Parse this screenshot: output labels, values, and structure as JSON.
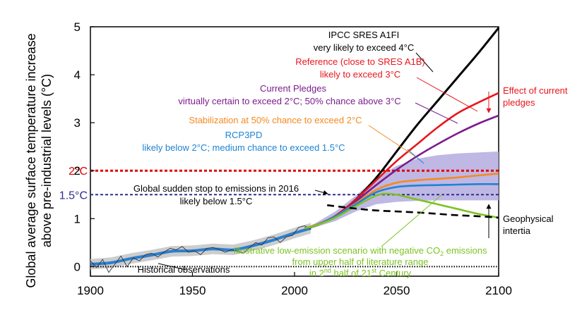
{
  "chart_data": {
    "type": "line",
    "title": "",
    "xlabel": "",
    "ylabel_lines": [
      "Global average surface temperature increase",
      "above pre-industrial levels (°C)"
    ],
    "xlim": [
      1900,
      2100
    ],
    "ylim": [
      -0.2,
      5
    ],
    "xticks": [
      1900,
      1950,
      2000,
      2050,
      2100
    ],
    "yticks": [
      0,
      1,
      2,
      3,
      4,
      5
    ],
    "grid": false,
    "colors": {
      "observations": "#333333",
      "history_band": "#c8c8c8",
      "history_mean": "#2a7fd0",
      "rcp3pd": "#1f83d1",
      "rcp3pd_band": "#b4acdf",
      "sres_a1fi": "#000000",
      "reference": "#e8161c",
      "pledges": "#7a1d8c",
      "stabilization": "#f5891f",
      "low_emission": "#7dc322",
      "sudden_stop": "#000000",
      "threshold_2c": "#e00000",
      "threshold_15c": "#2f2e8e"
    },
    "thresholds": [
      {
        "label": "2°C",
        "value": 2.0
      },
      {
        "label": "1.5°C",
        "value": 1.5
      }
    ],
    "observations": {
      "x": [
        1900,
        1903,
        1906,
        1909,
        1912,
        1915,
        1918,
        1921,
        1924,
        1927,
        1930,
        1933,
        1936,
        1939,
        1942,
        1945,
        1948,
        1951,
        1954,
        1957,
        1960,
        1963,
        1966,
        1969,
        1972,
        1975,
        1978,
        1981,
        1984,
        1987,
        1990,
        1993,
        1996,
        1999,
        2002,
        2005,
        2008
      ],
      "y": [
        0.12,
        -0.02,
        0.15,
        -0.12,
        0.05,
        0.22,
        0.0,
        0.18,
        0.12,
        0.25,
        0.28,
        0.2,
        0.3,
        0.38,
        0.35,
        0.42,
        0.3,
        0.33,
        0.25,
        0.38,
        0.4,
        0.36,
        0.3,
        0.35,
        0.32,
        0.28,
        0.4,
        0.5,
        0.45,
        0.6,
        0.62,
        0.5,
        0.62,
        0.65,
        0.82,
        0.85,
        0.78
      ]
    },
    "historical_mean": {
      "x": [
        1900,
        1910,
        1920,
        1930,
        1940,
        1950,
        1960,
        1970,
        1980,
        1990,
        2000,
        2008
      ],
      "y": [
        0.05,
        0.08,
        0.17,
        0.24,
        0.32,
        0.33,
        0.37,
        0.35,
        0.44,
        0.56,
        0.7,
        0.8
      ]
    },
    "history_band_halfwidth": 0.11,
    "series": [
      {
        "key": "sres_a1fi",
        "x": [
          2005,
          2010,
          2020,
          2030,
          2040,
          2050,
          2060,
          2070,
          2080,
          2090,
          2100
        ],
        "y": [
          0.8,
          0.85,
          1.05,
          1.4,
          1.85,
          2.4,
          2.95,
          3.45,
          3.95,
          4.45,
          4.98
        ]
      },
      {
        "key": "reference",
        "x": [
          2005,
          2010,
          2020,
          2030,
          2040,
          2050,
          2060,
          2070,
          2080,
          2090,
          2100
        ],
        "y": [
          0.8,
          0.86,
          1.06,
          1.4,
          1.8,
          2.2,
          2.55,
          2.9,
          3.2,
          3.42,
          3.62
        ]
      },
      {
        "key": "pledges",
        "x": [
          2005,
          2010,
          2020,
          2030,
          2040,
          2050,
          2060,
          2070,
          2080,
          2090,
          2100
        ],
        "y": [
          0.8,
          0.86,
          1.05,
          1.36,
          1.7,
          2.02,
          2.3,
          2.55,
          2.78,
          2.98,
          3.15
        ]
      },
      {
        "key": "stabilization",
        "x": [
          2005,
          2010,
          2020,
          2030,
          2040,
          2050,
          2060,
          2070,
          2080,
          2090,
          2100
        ],
        "y": [
          0.8,
          0.86,
          1.05,
          1.32,
          1.6,
          1.75,
          1.8,
          1.83,
          1.86,
          1.9,
          1.94
        ]
      },
      {
        "key": "rcp3pd",
        "x": [
          2005,
          2010,
          2020,
          2030,
          2040,
          2050,
          2060,
          2070,
          2080,
          2090,
          2100
        ],
        "y": [
          0.8,
          0.85,
          1.05,
          1.3,
          1.55,
          1.66,
          1.69,
          1.7,
          1.71,
          1.72,
          1.72
        ]
      },
      {
        "key": "low_emission",
        "x": [
          2005,
          2010,
          2020,
          2030,
          2040,
          2045,
          2050,
          2060,
          2070,
          2080,
          2090,
          2100
        ],
        "y": [
          0.8,
          0.85,
          1.02,
          1.26,
          1.48,
          1.52,
          1.5,
          1.4,
          1.3,
          1.2,
          1.1,
          1.02
        ]
      },
      {
        "key": "sudden_stop",
        "x": [
          2016,
          2020,
          2030,
          2040,
          2050,
          2060,
          2070,
          2080,
          2090,
          2100
        ],
        "y": [
          1.28,
          1.26,
          1.21,
          1.17,
          1.15,
          1.13,
          1.1,
          1.07,
          1.05,
          1.02
        ],
        "dashed": true
      }
    ],
    "rcp3pd_band": {
      "x": [
        2005,
        2010,
        2020,
        2030,
        2040,
        2050,
        2060,
        2070,
        2080,
        2090,
        2100
      ],
      "lower": [
        0.8,
        0.82,
        0.95,
        1.15,
        1.3,
        1.35,
        1.37,
        1.38,
        1.38,
        1.38,
        1.38
      ],
      "upper": [
        0.8,
        0.9,
        1.15,
        1.48,
        1.85,
        2.1,
        2.25,
        2.32,
        2.36,
        2.38,
        2.4
      ]
    },
    "annotations": [
      {
        "key": "a1fi",
        "lines": [
          "IPCC SRES A1FI",
          "very likely to exceed 4°C"
        ],
        "color": "#000000"
      },
      {
        "key": "ref",
        "lines": [
          "Reference (close to SRES A1B)",
          "likely to exceed 3°C"
        ],
        "color": "#e8161c"
      },
      {
        "key": "pledges",
        "lines": [
          "Current Pledges",
          "virtually certain to exceed 2°C; 50% chance above 3°C"
        ],
        "color": "#7a1d8c"
      },
      {
        "key": "stab",
        "lines": [
          "Stabilization at 50% chance to exceed 2°C"
        ],
        "color": "#f5891f"
      },
      {
        "key": "rcp",
        "lines": [
          "RCP3PD",
          "likely below 2°C; medium chance to exceed 1.5°C"
        ],
        "color": "#1f83d1"
      },
      {
        "key": "stop",
        "lines": [
          "Global sudden stop to emissions in 2016",
          "likely below 1.5°C"
        ],
        "color": "#000000"
      },
      {
        "key": "effect",
        "lines": [
          "Effect of current",
          "pledges"
        ],
        "color": "#e8161c"
      },
      {
        "key": "geo",
        "lines": [
          "Geophysical",
          "intertia"
        ],
        "color": "#000000"
      },
      {
        "key": "hist",
        "lines": [
          "Historical observations"
        ],
        "color": "#000000"
      }
    ],
    "low_emission_note": {
      "line1_a": "Illustrative low-emission scenario with negative CO",
      "line1_sub": "2",
      "line1_b": " emissions",
      "line2": "from upper half of literature range",
      "line3_a": "in 2",
      "line3_sup1": "nd",
      "line3_b": " half of 21",
      "line3_sup2": "st",
      "line3_c": " Century",
      "color": "#7dc322"
    }
  }
}
